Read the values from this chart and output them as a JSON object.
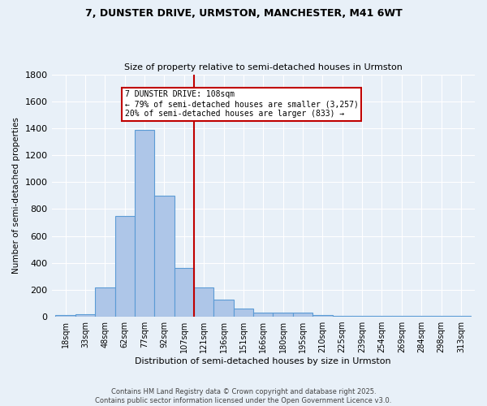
{
  "title_line1": "7, DUNSTER DRIVE, URMSTON, MANCHESTER, M41 6WT",
  "title_line2": "Size of property relative to semi-detached houses in Urmston",
  "xlabel": "Distribution of semi-detached houses by size in Urmston",
  "ylabel": "Number of semi-detached properties",
  "bin_labels": [
    "18sqm",
    "33sqm",
    "48sqm",
    "62sqm",
    "77sqm",
    "92sqm",
    "107sqm",
    "121sqm",
    "136sqm",
    "151sqm",
    "166sqm",
    "180sqm",
    "195sqm",
    "210sqm",
    "225sqm",
    "239sqm",
    "254sqm",
    "269sqm",
    "284sqm",
    "298sqm",
    "313sqm"
  ],
  "bin_values": [
    10,
    20,
    220,
    750,
    1390,
    900,
    360,
    220,
    130,
    60,
    30,
    30,
    30,
    10,
    5,
    5,
    5,
    5,
    5,
    5,
    5
  ],
  "bar_color": "#aec6e8",
  "bar_edge_color": "#5b9bd5",
  "vline_color": "#c00000",
  "annotation_text": "7 DUNSTER DRIVE: 108sqm\n← 79% of semi-detached houses are smaller (3,257)\n20% of semi-detached houses are larger (833) →",
  "annotation_box_color": "#ffffff",
  "annotation_box_edge": "#c00000",
  "ylim": [
    0,
    1800
  ],
  "background_color": "#e8f0f8",
  "footer_text": "Contains HM Land Registry data © Crown copyright and database right 2025.\nContains public sector information licensed under the Open Government Licence v3.0.",
  "grid_color": "#ffffff",
  "vline_bin_index": 6
}
